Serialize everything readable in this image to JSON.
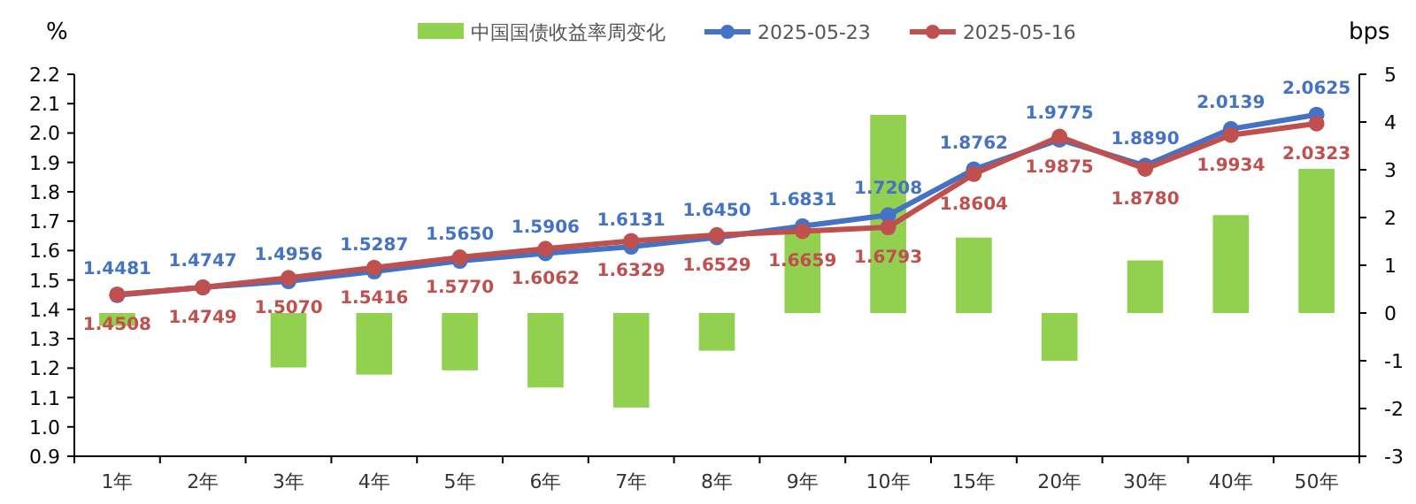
{
  "chart_data": {
    "type": "line",
    "ylabel": "%",
    "y2label": "bps",
    "legend": "top",
    "marker": "circle",
    "categories": [
      "1年",
      "2年",
      "3年",
      "4年",
      "5年",
      "6年",
      "7年",
      "8年",
      "9年",
      "10年",
      "15年",
      "20年",
      "30年",
      "40年",
      "50年"
    ],
    "ylim": [
      0.9,
      2.2
    ],
    "yticks": [
      0.9,
      {
        "value": 1,
        "label": "1.0"
      },
      1.1,
      1.2,
      1.3,
      1.4,
      1.5,
      1.6,
      1.7,
      1.8,
      1.9,
      {
        "value": 2,
        "label": "2.0"
      },
      2.1,
      2.2
    ],
    "y2lim": [
      -3,
      5
    ],
    "y2ticks": [
      -3,
      -2,
      -1,
      0,
      1,
      2,
      3,
      4,
      5
    ],
    "series": [
      {
        "name": "中国国债收益率周变化",
        "type": "bar",
        "axis": "y2",
        "color": "#92d050",
        "values": [
          -0.27,
          null,
          -1.14,
          -1.29,
          -1.2,
          -1.56,
          -1.98,
          -0.79,
          1.72,
          4.15,
          1.58,
          -1.0,
          1.1,
          2.05,
          3.02
        ]
      },
      {
        "name": "2025-05-23",
        "color": "#4472c4",
        "values": [
          1.4481,
          1.4747,
          1.4956,
          1.5287,
          1.565,
          1.5906,
          1.6131,
          1.645,
          1.6831,
          1.7208,
          1.8762,
          1.9775,
          1.889,
          2.0139,
          2.0625
        ],
        "value_labels": [
          "1.4481",
          "1.4747",
          "1.4956",
          "1.5287",
          "1.5650",
          "1.5906",
          "1.6131",
          "1.6450",
          "1.6831",
          "1.7208",
          "1.8762",
          "1.9775",
          "1.8890",
          "2.0139",
          "2.0625"
        ]
      },
      {
        "name": "2025-05-16",
        "color": "#c0504d",
        "values": [
          1.4508,
          1.4749,
          1.507,
          1.5416,
          1.577,
          1.6062,
          1.6329,
          1.6529,
          1.6659,
          1.6793,
          1.8604,
          1.9875,
          1.878,
          1.9934,
          2.0323
        ],
        "value_labels": [
          "1.4508",
          "1.4749",
          "1.5070",
          "1.5416",
          "1.5770",
          "1.6062",
          "1.6329",
          "1.6529",
          "1.6659",
          "1.6793",
          "1.8604",
          "1.9875",
          "1.8780",
          "1.9934",
          "2.0323"
        ]
      }
    ]
  }
}
